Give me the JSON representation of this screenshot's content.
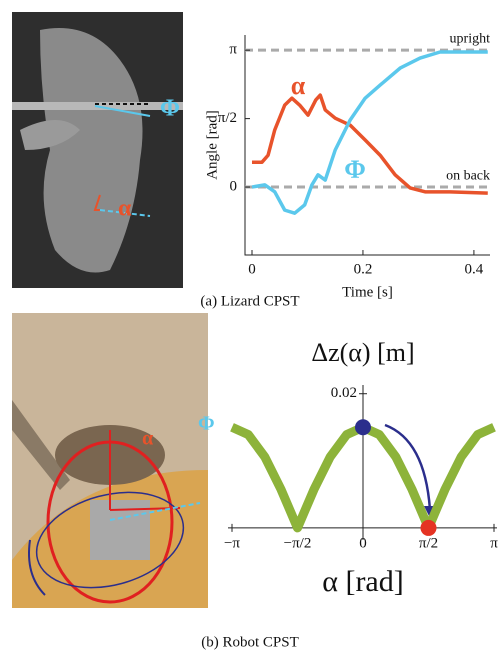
{
  "chart_data": [
    {
      "type": "line",
      "xlabel": "Time [s]",
      "ylabel": "Angle [rad]",
      "xlim": [
        -0.0126,
        0.429
      ],
      "ylim": [
        -1.56,
        3.49
      ],
      "xticks": [
        0,
        0.2,
        0.4
      ],
      "yticks": [
        0,
        {
          "value": 1.5708,
          "label": "π/2"
        },
        {
          "value": 3.1416,
          "label": "π"
        }
      ],
      "reference_lines": [
        {
          "value": 3.1416,
          "label": "upright"
        },
        {
          "value": 0,
          "label": "on back"
        }
      ],
      "series": [
        {
          "name": "α",
          "color": "#e8532b",
          "x": [
            0,
            0.018,
            0.029,
            0.041,
            0.059,
            0.072,
            0.086,
            0.101,
            0.115,
            0.123,
            0.132,
            0.15,
            0.177,
            0.204,
            0.231,
            0.258,
            0.285,
            0.312,
            0.357,
            0.425
          ],
          "values": [
            0.57,
            0.57,
            0.73,
            1.31,
            1.88,
            2.04,
            1.88,
            1.65,
            2.0,
            2.11,
            1.77,
            1.58,
            1.42,
            1.08,
            0.73,
            0.28,
            -0.02,
            -0.11,
            -0.11,
            -0.14
          ]
        },
        {
          "name": "Φ",
          "color": "#5bc8ec",
          "x": [
            0,
            0.023,
            0.041,
            0.059,
            0.077,
            0.095,
            0.108,
            0.119,
            0.132,
            0.15,
            0.177,
            0.204,
            0.231,
            0.267,
            0.303,
            0.339,
            0.375,
            0.425
          ],
          "values": [
            0,
            0.05,
            -0.11,
            -0.53,
            -0.6,
            -0.41,
            0.05,
            0.28,
            0.16,
            0.85,
            1.54,
            2.04,
            2.34,
            2.73,
            2.96,
            3.1,
            3.1,
            3.1
          ]
        }
      ]
    },
    {
      "type": "line",
      "xlabel": "α [rad]",
      "ylabel": "Δz(α) [m]",
      "xlim": [
        -3.1416,
        3.1416
      ],
      "ylim": [
        -0.0018,
        0.0213
      ],
      "xticks": [
        {
          "value": -3.1416,
          "label": "−π"
        },
        {
          "value": -1.5708,
          "label": "−π/2"
        },
        0,
        {
          "value": 1.5708,
          "label": "π/2"
        },
        {
          "value": 3.1416,
          "label": "π"
        }
      ],
      "yticks": [
        0.02
      ],
      "series": [
        {
          "color": "#8db33a",
          "x": [
            -3.1416,
            -2.7489,
            -2.3562,
            -1.9635,
            -1.5708,
            -1.1781,
            -0.7854,
            -0.3927,
            0,
            0.3927,
            0.7854,
            1.1781,
            1.5708,
            1.9635,
            2.3562,
            2.7489,
            3.1416
          ],
          "values": [
            0.015,
            0.0139,
            0.0106,
            0.0057,
            0,
            0.0057,
            0.0106,
            0.0139,
            0.015,
            0.0139,
            0.0106,
            0.0057,
            0,
            0.0057,
            0.0106,
            0.0139,
            0.015
          ]
        }
      ],
      "markers": [
        {
          "x": 0,
          "y": 0.015,
          "color": "#2b2e8c"
        },
        {
          "x": 1.5708,
          "y": 0,
          "color": "#e53323"
        }
      ]
    }
  ],
  "captions": [
    "(a) Lizard CPST",
    "(b) Robot CPST"
  ],
  "photo_labels": {
    "lizard": [
      "Φ",
      "α"
    ],
    "robot": [
      "α",
      "Φ"
    ]
  }
}
